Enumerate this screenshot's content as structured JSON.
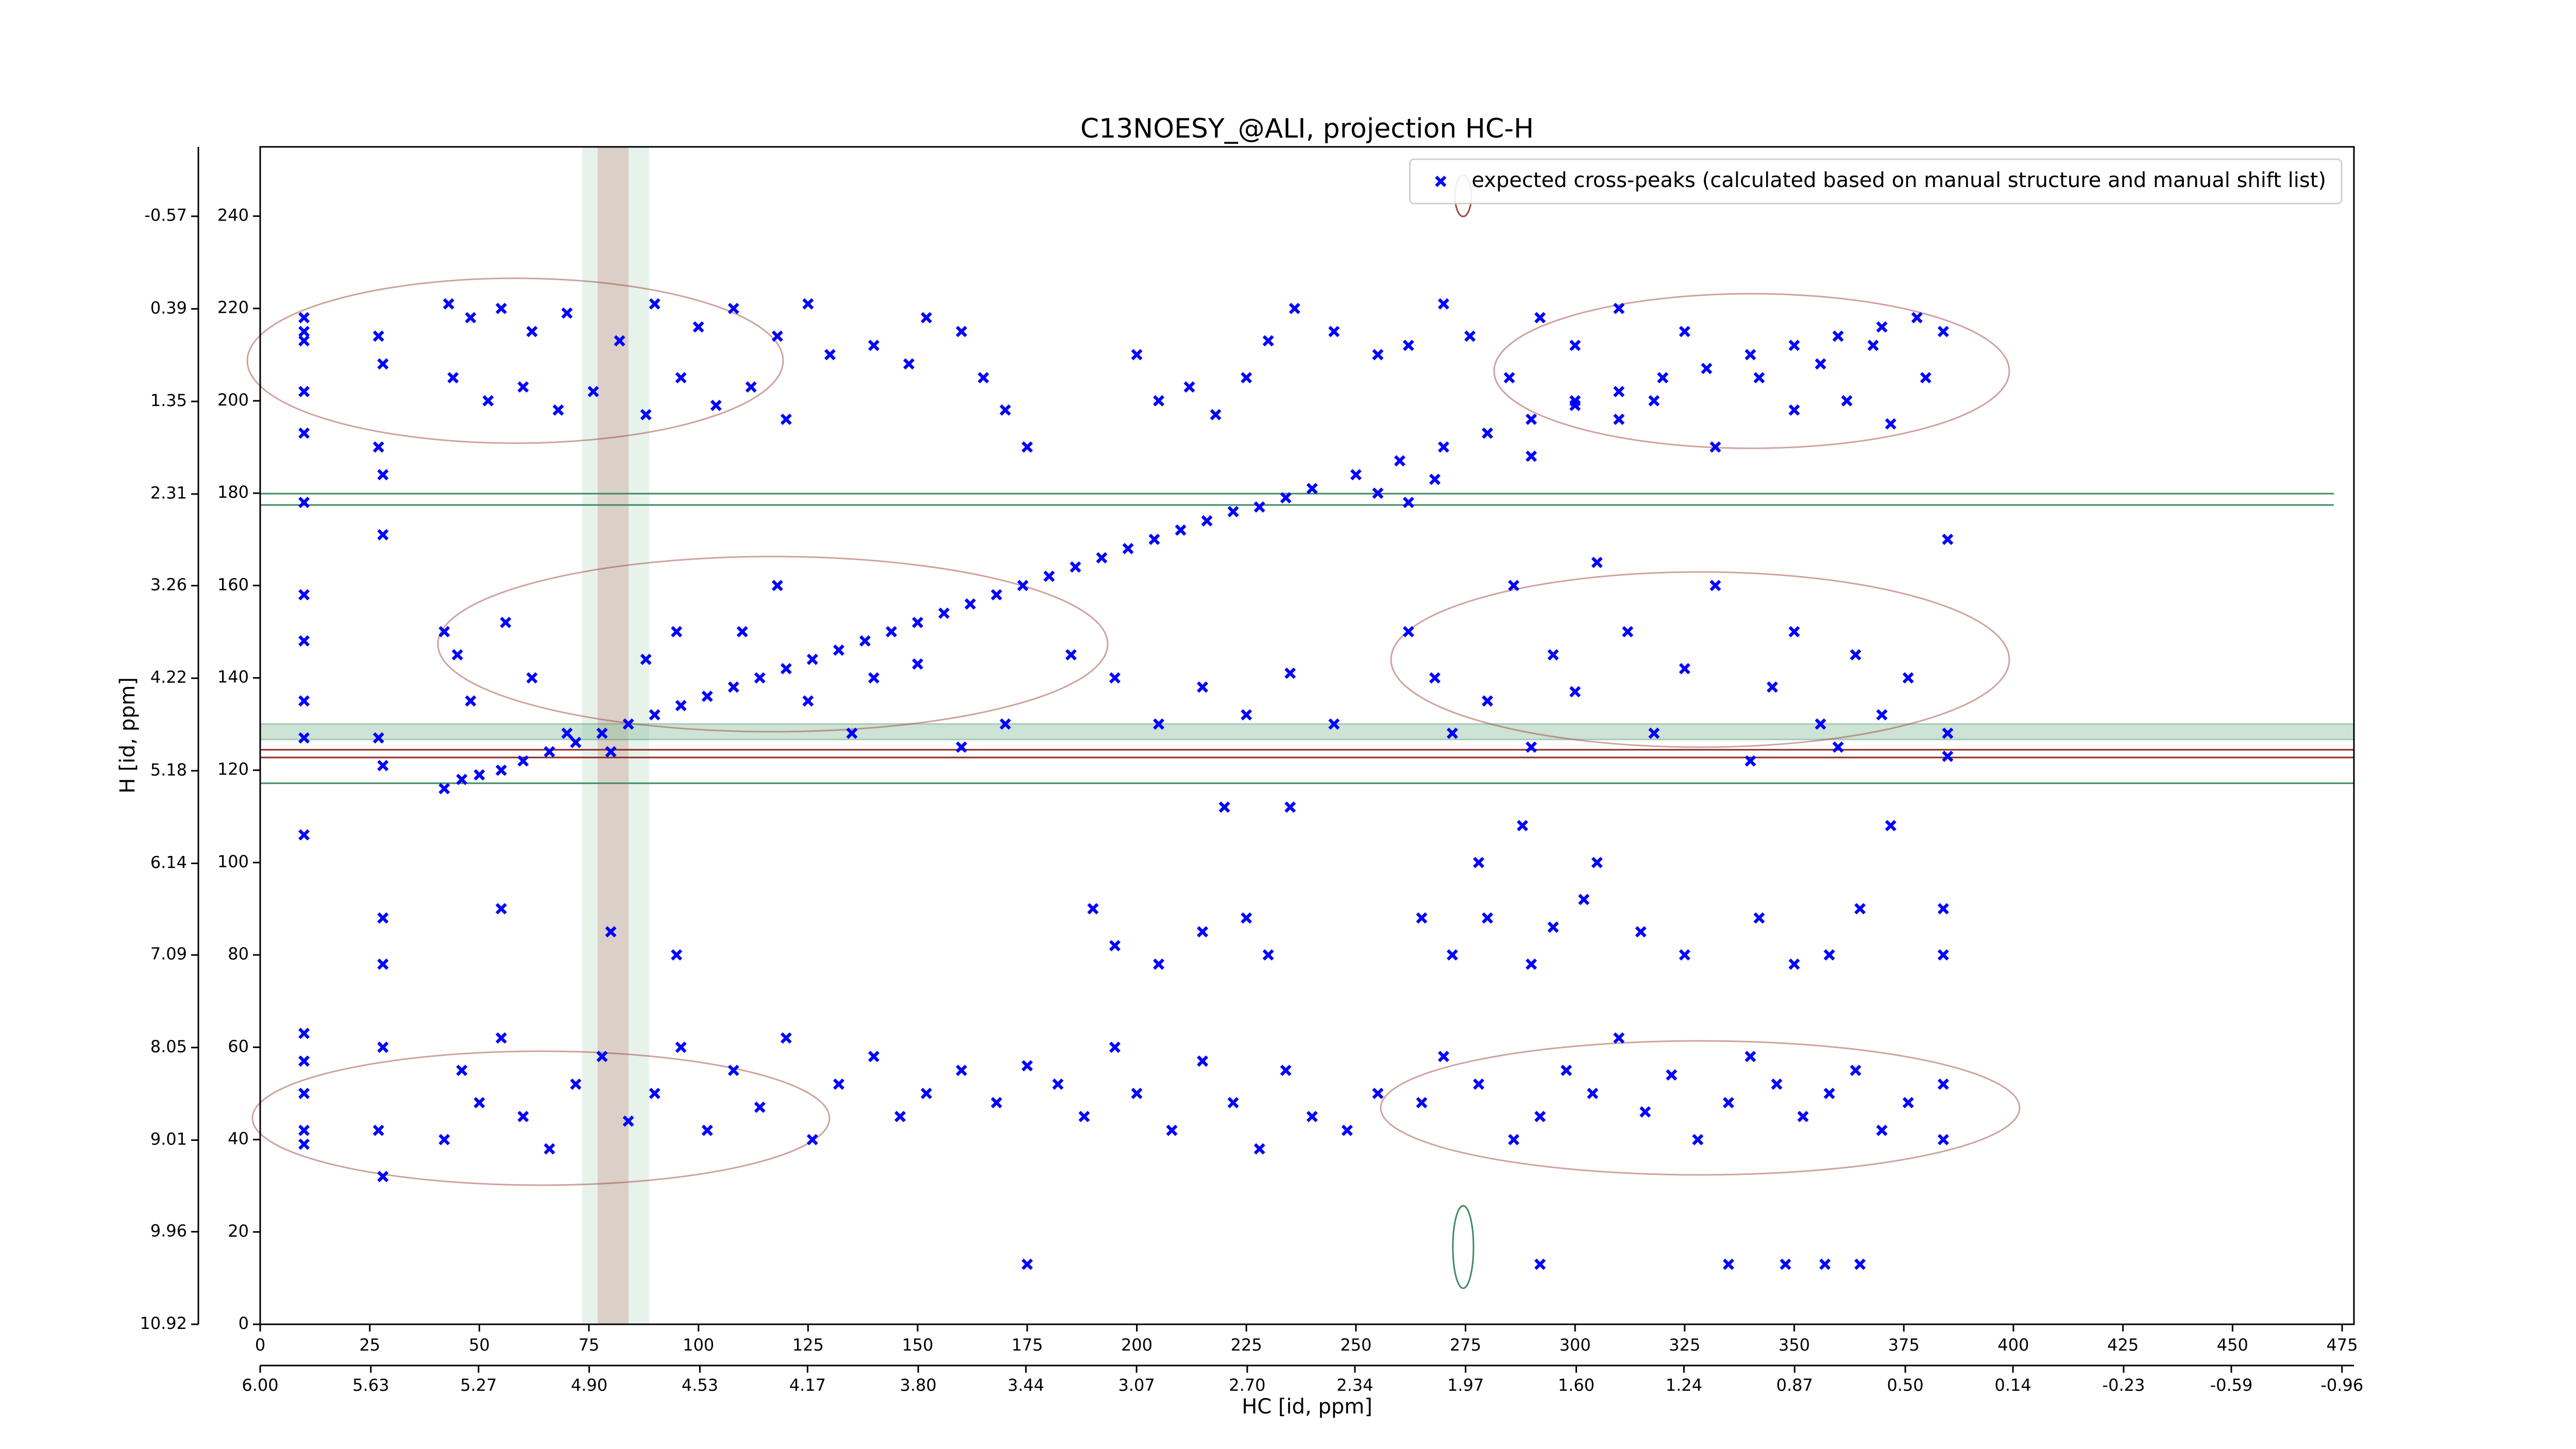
{
  "chart_data": {
    "type": "scatter",
    "title": "C13NOESY_@ALI, projection HC-H",
    "xlabel": "HC [id, ppm]",
    "ylabel": "H [id, ppm]",
    "xlim": [
      0,
      477.7
    ],
    "xticks": [
      0,
      25,
      50,
      75,
      100,
      125,
      150,
      175,
      200,
      225,
      250,
      275,
      300,
      325,
      350,
      375,
      400,
      425,
      450,
      475
    ],
    "x2lim": [
      6.0,
      -1.0
    ],
    "x2ticks": [
      {
        "value": 6.0,
        "label": "6.00"
      },
      5.63,
      5.27,
      {
        "value": 4.9,
        "label": "4.90"
      },
      4.53,
      4.17,
      {
        "value": 3.8,
        "label": "3.80"
      },
      3.44,
      3.07,
      {
        "value": 2.7,
        "label": "2.70"
      },
      2.34,
      1.97,
      {
        "value": 1.6,
        "label": "1.60"
      },
      1.24,
      0.87,
      {
        "value": 0.5,
        "label": "0.50"
      },
      0.14,
      -0.23,
      -0.59,
      -0.96
    ],
    "ylim": [
      0,
      255
    ],
    "yticks": [
      0,
      20,
      40,
      60,
      80,
      100,
      120,
      140,
      160,
      180,
      200,
      220,
      240
    ],
    "y2lim": [
      10.92,
      -1.29
    ],
    "y2ticks": [
      10.92,
      9.96,
      9.01,
      8.05,
      7.09,
      6.14,
      5.18,
      4.22,
      3.26,
      2.31,
      1.35,
      0.39,
      -0.57
    ],
    "grid": false,
    "legend": "upper right",
    "series": [
      {
        "name": "expected cross-peaks (calculated based on manual structure and manual shift list)",
        "color": "#0000ff",
        "x": [
          42,
          46,
          50,
          55,
          60,
          66,
          72,
          78,
          84,
          90,
          96,
          102,
          108,
          114,
          120,
          126,
          132,
          138,
          144,
          150,
          156,
          162,
          168,
          174,
          180,
          186,
          192,
          198,
          204,
          210,
          216,
          222,
          228,
          234,
          240,
          250,
          260,
          270,
          280,
          290,
          300,
          310,
          320,
          330,
          340,
          350,
          360,
          370,
          378,
          43,
          48,
          55,
          62,
          70,
          82,
          90,
          100,
          108,
          118,
          125,
          130,
          44,
          52,
          60,
          68,
          76,
          88,
          96,
          104,
          112,
          120,
          140,
          148,
          152,
          160,
          165,
          170,
          175,
          200,
          205,
          212,
          218,
          225,
          230,
          236,
          245,
          255,
          262,
          270,
          276,
          285,
          292,
          300,
          310,
          318,
          325,
          332,
          342,
          350,
          356,
          362,
          368,
          372,
          380,
          384,
          300,
          310,
          290,
          268,
          262,
          255,
          42,
          45,
          48,
          56,
          62,
          70,
          80,
          88,
          95,
          110,
          118,
          125,
          135,
          140,
          150,
          160,
          170,
          185,
          195,
          205,
          215,
          225,
          235,
          245,
          262,
          268,
          272,
          280,
          286,
          290,
          295,
          300,
          305,
          312,
          318,
          325,
          332,
          340,
          345,
          350,
          356,
          360,
          364,
          370,
          376,
          385,
          385,
          385,
          42,
          46,
          50,
          55,
          60,
          66,
          72,
          78,
          84,
          90,
          96,
          102,
          108,
          114,
          120,
          126,
          132,
          140,
          146,
          152,
          160,
          168,
          175,
          182,
          188,
          195,
          200,
          208,
          215,
          222,
          228,
          234,
          240,
          248,
          255,
          265,
          270,
          278,
          286,
          292,
          298,
          304,
          310,
          316,
          322,
          328,
          335,
          340,
          346,
          352,
          358,
          364,
          370,
          376,
          384,
          384,
          28,
          28,
          55,
          80,
          95,
          190,
          195,
          205,
          215,
          225,
          230,
          265,
          272,
          280,
          290,
          295,
          302,
          315,
          325,
          342,
          350,
          358,
          365,
          384,
          384,
          10,
          10,
          10,
          10,
          10,
          10,
          10,
          10,
          10,
          10,
          10,
          10,
          10,
          10,
          10,
          10,
          27,
          28,
          27,
          28,
          28,
          27,
          28,
          28,
          27,
          28,
          175,
          292,
          335,
          348,
          357,
          365,
          288,
          305,
          372,
          278,
          220,
          235
        ],
        "values": [
          116,
          118,
          119,
          120,
          122,
          124,
          126,
          128,
          130,
          132,
          134,
          136,
          138,
          140,
          142,
          144,
          146,
          148,
          150,
          152,
          154,
          156,
          158,
          160,
          162,
          164,
          166,
          168,
          170,
          172,
          174,
          176,
          177,
          179,
          181,
          184,
          187,
          190,
          193,
          196,
          199,
          202,
          205,
          207,
          210,
          212,
          214,
          216,
          218,
          221,
          218,
          220,
          215,
          219,
          213,
          221,
          216,
          220,
          214,
          221,
          210,
          205,
          200,
          203,
          198,
          202,
          197,
          205,
          199,
          203,
          196,
          212,
          208,
          218,
          215,
          205,
          198,
          190,
          210,
          200,
          203,
          197,
          205,
          213,
          220,
          215,
          210,
          212,
          221,
          214,
          205,
          218,
          212,
          220,
          200,
          215,
          190,
          205,
          198,
          208,
          200,
          212,
          195,
          205,
          215,
          200,
          196,
          188,
          183,
          178,
          180,
          150,
          145,
          135,
          152,
          140,
          128,
          124,
          144,
          150,
          150,
          160,
          135,
          128,
          140,
          143,
          125,
          130,
          145,
          140,
          130,
          138,
          132,
          141,
          130,
          150,
          140,
          128,
          135,
          160,
          125,
          145,
          137,
          165,
          150,
          128,
          142,
          160,
          122,
          138,
          150,
          130,
          125,
          145,
          132,
          140,
          128,
          123,
          170,
          40,
          55,
          48,
          62,
          45,
          38,
          52,
          58,
          44,
          50,
          60,
          42,
          55,
          47,
          62,
          40,
          52,
          58,
          45,
          50,
          55,
          48,
          56,
          52,
          45,
          60,
          50,
          42,
          57,
          48,
          38,
          55,
          45,
          42,
          50,
          48,
          58,
          52,
          40,
          45,
          55,
          50,
          62,
          46,
          54,
          40,
          48,
          58,
          52,
          45,
          50,
          55,
          42,
          48,
          52,
          40,
          88,
          78,
          90,
          85,
          80,
          90,
          82,
          78,
          85,
          88,
          80,
          88,
          80,
          88,
          78,
          86,
          92,
          85,
          80,
          88,
          78,
          80,
          90,
          80,
          90,
          218,
          215,
          213,
          202,
          193,
          178,
          158,
          148,
          135,
          127,
          106,
          63,
          57,
          50,
          42,
          39,
          214,
          208,
          190,
          184,
          171,
          127,
          121,
          60,
          42,
          32,
          13,
          13,
          13,
          13,
          13,
          13,
          108,
          100,
          108,
          100,
          112,
          112
        ]
      }
    ]
  }
}
